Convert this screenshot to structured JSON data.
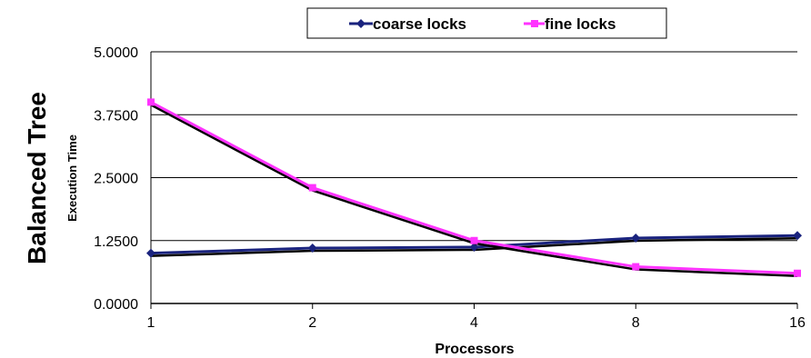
{
  "chart_data": {
    "type": "line",
    "side_title": "Balanced Tree",
    "xlabel": "Processors",
    "ylabel": "Execution Time",
    "categories": [
      "1",
      "2",
      "4",
      "8",
      "16"
    ],
    "yticks": [
      "0.0000",
      "1.2500",
      "2.5000",
      "3.7500",
      "5.0000"
    ],
    "ylim": [
      0,
      5
    ],
    "grid": true,
    "legend_position": "top",
    "series": [
      {
        "name": "coarse locks",
        "values": [
          1.0,
          1.1,
          1.12,
          1.3,
          1.35
        ],
        "color": "#1a237e",
        "marker": "diamond"
      },
      {
        "name": "fine locks",
        "values": [
          4.0,
          2.3,
          1.25,
          0.73,
          0.6
        ],
        "color": "#ff33ff",
        "marker": "square"
      }
    ]
  }
}
